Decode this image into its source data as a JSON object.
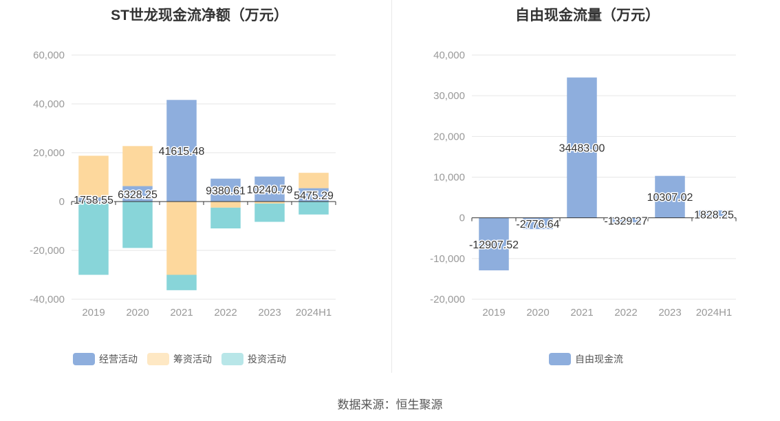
{
  "charts": {
    "left_title": "ST世龙现金流净额（万元）",
    "right_title": "自由现金流量（万元）"
  },
  "source": "数据来源：恒生聚源",
  "chart_data": [
    {
      "type": "bar",
      "stacked": true,
      "title": "ST世龙现金流净额（万元）",
      "categories": [
        "2019",
        "2020",
        "2021",
        "2022",
        "2023",
        "2024H1"
      ],
      "ylim": [
        -40000,
        60000
      ],
      "yticks": [
        -40000,
        -20000,
        0,
        20000,
        40000,
        60000
      ],
      "ytick_labels": [
        "-40,000",
        "-20,000",
        "0",
        "20,000",
        "40,000",
        "60,000"
      ],
      "grid": true,
      "legend_position": "bottom",
      "series": [
        {
          "name": "经营活动",
          "color": "#8eaedd",
          "values": [
            1758.55,
            6328.25,
            41615.48,
            9380.61,
            10240.79,
            5475.29
          ]
        },
        {
          "name": "筹资活动",
          "color": "#fdd89d",
          "values": [
            17000,
            16400,
            -30000,
            -2500,
            -800,
            6300
          ]
        },
        {
          "name": "投资活动",
          "color": "#88d5d9",
          "values": [
            -30000,
            -19000,
            -6300,
            -8500,
            -7500,
            -5300
          ]
        }
      ],
      "data_labels": [
        "1758.55",
        "6328.25",
        "41615.48",
        "9380.61",
        "10240.79",
        "5475.29"
      ]
    },
    {
      "type": "bar",
      "title": "自由现金流量（万元）",
      "categories": [
        "2019",
        "2020",
        "2021",
        "2022",
        "2023",
        "2024H1"
      ],
      "ylim": [
        -20000,
        40000
      ],
      "yticks": [
        -20000,
        -10000,
        0,
        10000,
        20000,
        30000,
        40000
      ],
      "ytick_labels": [
        "-20,000",
        "-10,000",
        "0",
        "10,000",
        "20,000",
        "30,000",
        "40,000"
      ],
      "grid": true,
      "legend_position": "bottom",
      "series": [
        {
          "name": "自由现金流",
          "color": "#8eaedd",
          "values": [
            -12907.52,
            -2776.64,
            34483.0,
            -1329.27,
            10307.02,
            1828.25
          ]
        }
      ],
      "data_labels": [
        "-12907.52",
        "-2776.64",
        "34483.00",
        "-1329.27",
        "10307.02",
        "1828.25"
      ]
    }
  ]
}
